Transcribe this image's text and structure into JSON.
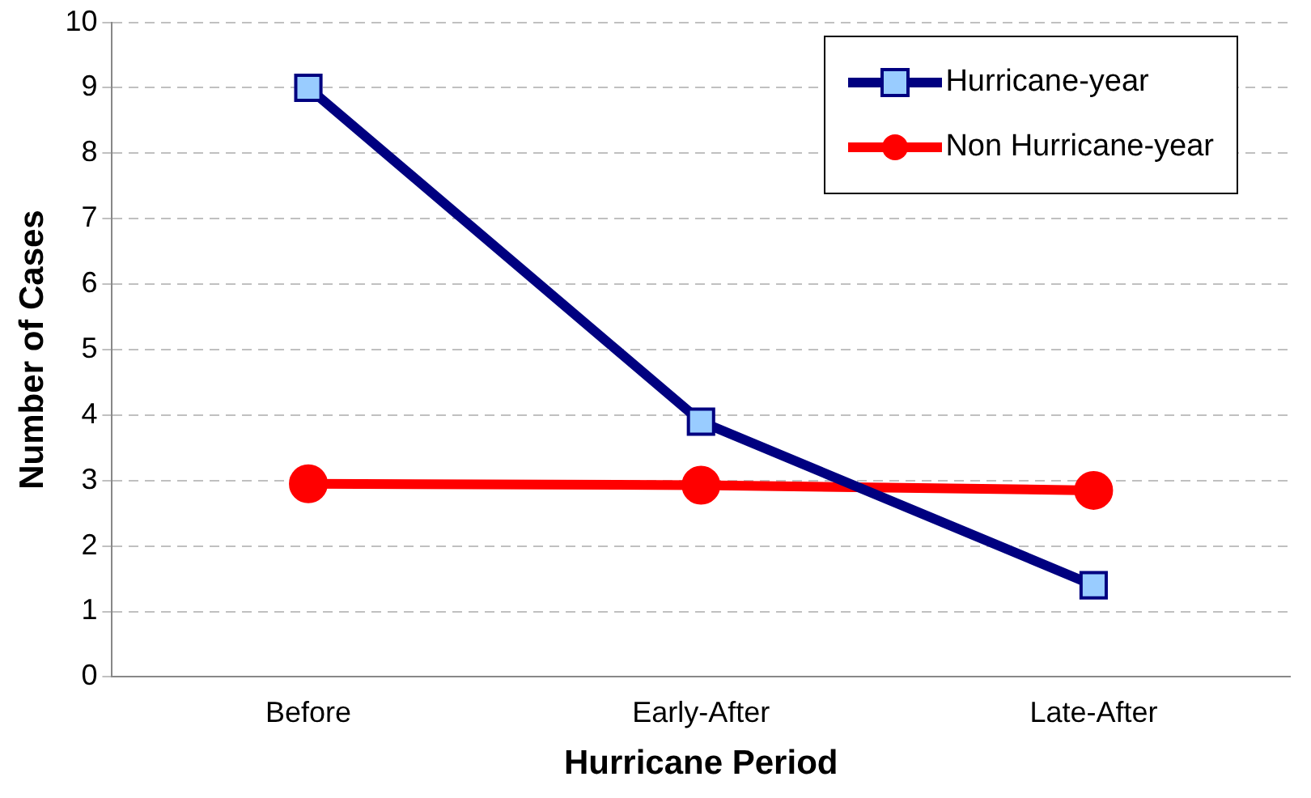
{
  "chart_data": {
    "type": "line",
    "xlabel": "Hurricane Period",
    "ylabel": "Number of Cases",
    "categories": [
      "Before",
      "Early-After",
      "Late-After"
    ],
    "series": [
      {
        "name": "Hurricane-year",
        "color": "#000080",
        "marker": "square",
        "values": [
          9,
          3.9,
          1.4
        ]
      },
      {
        "name": "Non Hurricane-year",
        "color": "#ff0000",
        "marker": "circle",
        "values": [
          2.95,
          2.93,
          2.85
        ]
      }
    ],
    "ylim": [
      0,
      10
    ],
    "yticks": [
      0,
      1,
      2,
      3,
      4,
      5,
      6,
      7,
      8,
      9,
      10
    ],
    "grid": "y",
    "legend": "top right",
    "line_style": "solid"
  }
}
